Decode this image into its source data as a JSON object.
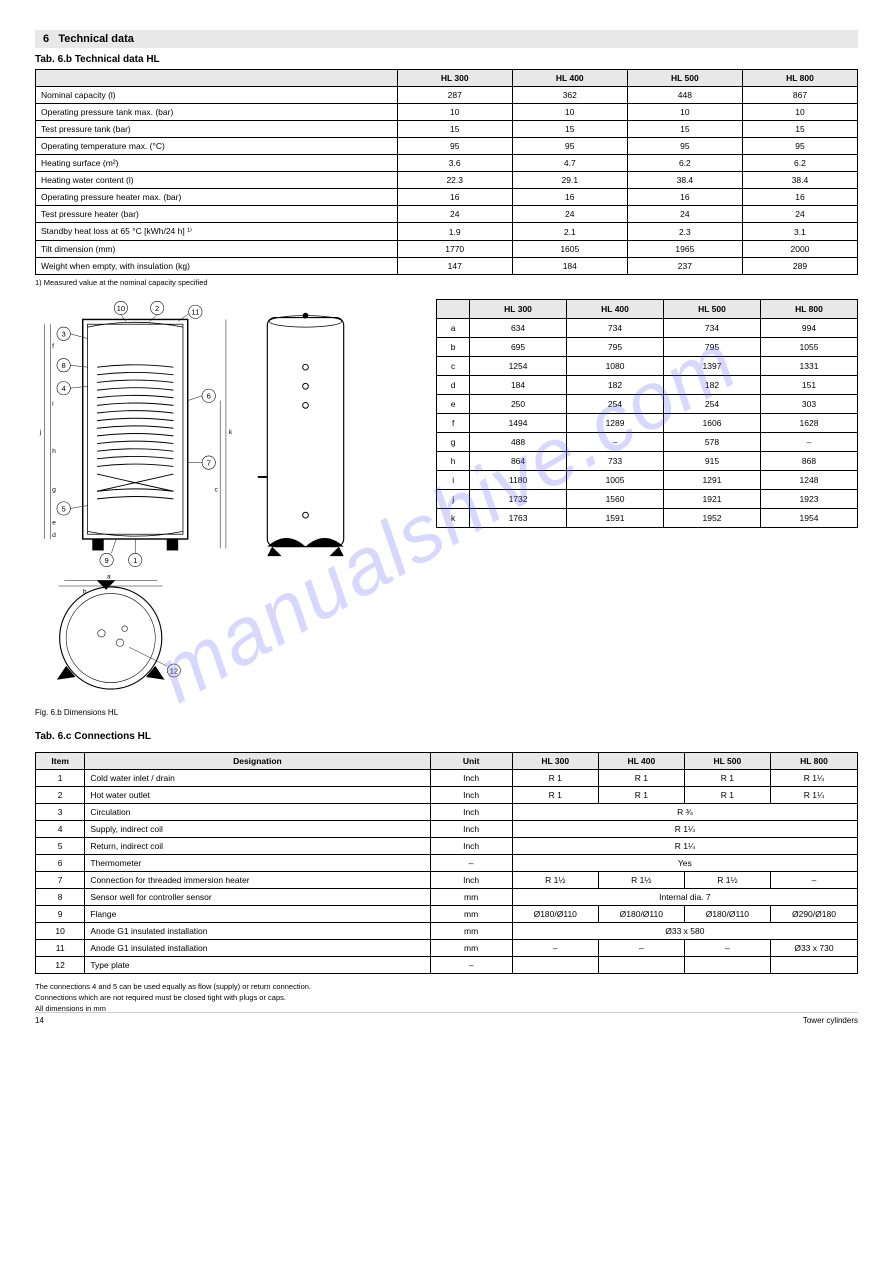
{
  "header": {
    "section_number": "6",
    "section_title": "Technical data"
  },
  "table1_title": "Tab. 6.b Technical data HL",
  "table1": {
    "columns": [
      "",
      "HL 300",
      "HL 400",
      "HL 500",
      "HL 800"
    ],
    "rows": [
      [
        "Nominal capacity (l)",
        "287",
        "362",
        "448",
        "867"
      ],
      [
        "Operating pressure tank max. (bar)",
        "10",
        "10",
        "10",
        "10"
      ],
      [
        "Test pressure tank (bar)",
        "15",
        "15",
        "15",
        "15"
      ],
      [
        "Operating temperature max. (°C)",
        "95",
        "95",
        "95",
        "95"
      ],
      [
        "Heating surface (m²)",
        "3.6",
        "4.7",
        "6.2",
        "6.2"
      ],
      [
        "Heating water content (l)",
        "22.3",
        "29.1",
        "38.4",
        "38.4"
      ],
      [
        "Operating pressure heater max. (bar)",
        "16",
        "16",
        "16",
        "16"
      ],
      [
        "Test pressure heater (bar)",
        "24",
        "24",
        "24",
        "24"
      ],
      [
        "Standby heat loss at 65 °C [kWh/24 h] ¹⁾",
        "1.9",
        "2.1",
        "2.3",
        "3.1"
      ],
      [
        "Tilt dimension (mm)",
        "1770",
        "1605",
        "1965",
        "2000"
      ],
      [
        "Weight when empty, with insulation (kg)",
        "147",
        "184",
        "237",
        "289"
      ]
    ]
  },
  "table1_footnote": "1) Measured value at the nominal capacity specified",
  "diagram_caption": "Fig. 6.b Dimensions HL",
  "dim_table": {
    "columns": [
      "",
      "HL 300",
      "HL 400",
      "HL 500",
      "HL 800"
    ],
    "rows": [
      [
        "a",
        "634",
        "734",
        "734",
        "994"
      ],
      [
        "b",
        "695",
        "795",
        "795",
        "1055"
      ],
      [
        "c",
        "1254",
        "1080",
        "1397",
        "1331"
      ],
      [
        "d",
        "184",
        "182",
        "182",
        "151"
      ],
      [
        "e",
        "250",
        "254",
        "254",
        "303"
      ],
      [
        "f",
        "1494",
        "1289",
        "1606",
        "1628"
      ],
      [
        "g",
        "488",
        "–",
        "578",
        "–"
      ],
      [
        "h",
        "864",
        "733",
        "915",
        "868"
      ],
      [
        "i",
        "1180",
        "1005",
        "1291",
        "1248"
      ],
      [
        "j",
        "1732",
        "1560",
        "1921",
        "1923"
      ],
      [
        "k",
        "1763",
        "1591",
        "1952",
        "1954"
      ]
    ]
  },
  "conn_table_title": "Tab. 6.c Connections HL",
  "conn_table": {
    "columns": [
      "Item",
      "Designation",
      "Unit",
      "HL 300",
      "HL 400",
      "HL 500",
      "HL 800"
    ],
    "rows": [
      {
        "item": "1",
        "desig": "Cold water inlet / drain",
        "unit": "Inch",
        "v": [
          "R 1",
          "R 1",
          "R 1",
          "R 1¼"
        ],
        "span": false
      },
      {
        "item": "2",
        "desig": "Hot water outlet",
        "unit": "Inch",
        "v": [
          "R 1",
          "R 1",
          "R 1",
          "R 1¼"
        ],
        "span": false
      },
      {
        "item": "3",
        "desig": "Circulation",
        "unit": "Inch",
        "v": [
          "R ¾"
        ],
        "span": true
      },
      {
        "item": "4",
        "desig": "Supply, indirect coil",
        "unit": "Inch",
        "v": [
          "R 1¼"
        ],
        "span": true
      },
      {
        "item": "5",
        "desig": "Return, indirect coil",
        "unit": "Inch",
        "v": [
          "R 1¼"
        ],
        "span": true
      },
      {
        "item": "6",
        "desig": "Thermometer",
        "unit": "–",
        "v": [
          "Yes"
        ],
        "span": true
      },
      {
        "item": "7",
        "desig": "Connection for threaded immersion heater",
        "unit": "Inch",
        "v": [
          "R 1½",
          "R 1½",
          "R 1½",
          "–"
        ],
        "span": false
      },
      {
        "item": "8",
        "desig": "Sensor well for controller sensor",
        "unit": "mm",
        "v": [
          "Internal dia. 7"
        ],
        "span": true
      },
      {
        "item": "9",
        "desig": "Flange",
        "unit": "mm",
        "v": [
          "Ø180/Ø110",
          "Ø180/Ø110",
          "Ø180/Ø110",
          "Ø290/Ø180"
        ],
        "span": false
      },
      {
        "item": "10",
        "desig": "Anode G1 insulated installation",
        "unit": "mm",
        "v": [
          "Ø33 x 580"
        ],
        "span": true
      },
      {
        "item": "11",
        "desig": "Anode G1 insulated installation",
        "unit": "mm",
        "v": [
          "–",
          "–",
          "–",
          "Ø33 x 730"
        ],
        "span": false
      },
      {
        "item": "12",
        "desig": "Type plate",
        "unit": "–",
        "v": [
          "",
          "",
          "",
          ""
        ],
        "span": false
      }
    ]
  },
  "footnotes": [
    "The connections 4 and 5 can be used equally as flow (supply) or return connection.",
    "Connections which are not required must be closed tight with plugs or caps.",
    "All dimensions in mm"
  ],
  "footer": {
    "page": "14",
    "doc": "Tower cylinders"
  },
  "watermark": "manualshive.com",
  "diagram": {
    "labels": [
      "1",
      "2",
      "3",
      "4",
      "5",
      "6",
      "7",
      "8",
      "9",
      "10",
      "11",
      "12"
    ],
    "dims": [
      "a",
      "b",
      "c",
      "d",
      "e",
      "f",
      "g",
      "h",
      "i",
      "j",
      "k"
    ]
  }
}
